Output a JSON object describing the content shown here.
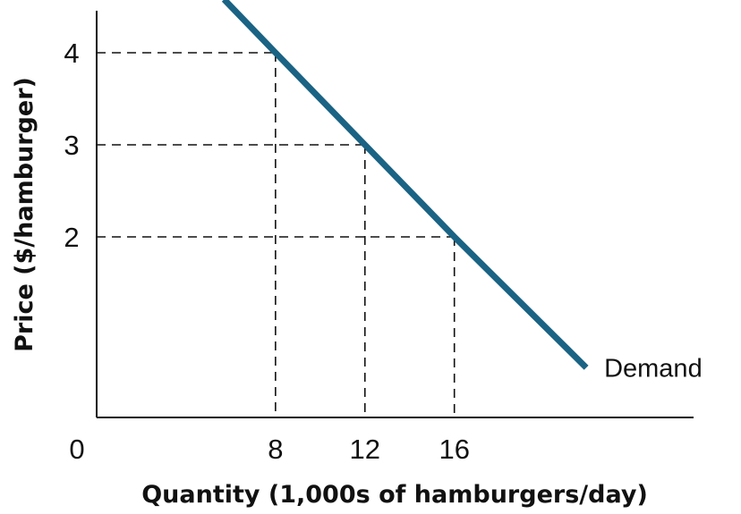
{
  "chart_data": {
    "type": "line",
    "xlabel": "Quantity (1,000s of hamburgers/day)",
    "ylabel": "Price ($/hamburger)",
    "origin_label": "0",
    "x_ticks": [
      "8",
      "12",
      "16"
    ],
    "y_ticks": [
      "2",
      "3",
      "4"
    ],
    "xlim": [
      0,
      26.7
    ],
    "ylim": [
      0,
      4.5
    ],
    "grid": false,
    "series": [
      {
        "name": "Demand",
        "color": "#1a6384",
        "x": [
          5.7,
          8,
          12,
          16,
          21.9
        ],
        "y": [
          4.58,
          4,
          3,
          2,
          0.58
        ]
      }
    ],
    "reference_points": [
      {
        "x": 8,
        "y": 4
      },
      {
        "x": 12,
        "y": 3
      },
      {
        "x": 16,
        "y": 2
      }
    ]
  }
}
